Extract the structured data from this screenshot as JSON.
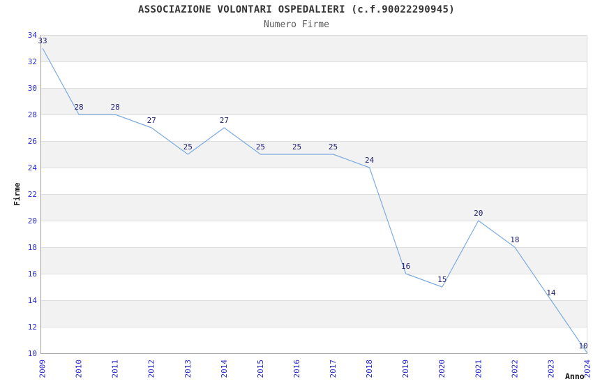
{
  "title": "ASSOCIAZIONE VOLONTARI OSPEDALIERI (c.f.90022290945)",
  "subtitle": "Numero Firme",
  "chart_data": {
    "type": "line",
    "title": "ASSOCIAZIONE VOLONTARI OSPEDALIERI (c.f.90022290945)",
    "subtitle": "Numero Firme",
    "xlabel": "Anno",
    "ylabel": "Firme",
    "categories": [
      "2009",
      "2010",
      "2011",
      "2012",
      "2013",
      "2014",
      "2015",
      "2016",
      "2017",
      "2018",
      "2019",
      "2020",
      "2021",
      "2022",
      "2023",
      "2024"
    ],
    "series": [
      {
        "name": "Numero Firme",
        "values": [
          33,
          28,
          28,
          27,
          25,
          27,
          25,
          25,
          25,
          24,
          16,
          15,
          20,
          18,
          14,
          10
        ]
      }
    ],
    "ylim": [
      10,
      34
    ],
    "ytick_step": 2,
    "grid": true,
    "legend": "none",
    "show_value_labels": true,
    "colors": {
      "line": "#7dabe0",
      "tick_label": "#2828cc",
      "value_label": "#1c1c6e",
      "band_gray": "#f2f2f2",
      "band_white": "#ffffff",
      "gridline": "#dedede",
      "axis_dark": "#a6a6a6",
      "axis_light": "#d9d9d9",
      "title_color": "#333333",
      "subtitle_color": "#5a5a5a"
    }
  }
}
